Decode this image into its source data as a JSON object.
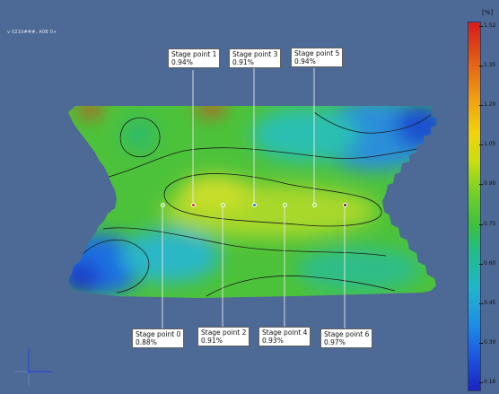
{
  "viewport": {
    "top_label": "v 0210###, A0B 0+",
    "background": "#4d6995"
  },
  "stage_points": [
    {
      "name": "Stage point 0",
      "value": "0.88%",
      "marker_color": "#8fd84a"
    },
    {
      "name": "Stage point 1",
      "value": "0.94%",
      "marker_color": "#c0392b"
    },
    {
      "name": "Stage point 2",
      "value": "0.91%",
      "marker_color": "#8fd84a"
    },
    {
      "name": "Stage point 3",
      "value": "0.91%",
      "marker_color": "#2b78c7"
    },
    {
      "name": "Stage point 4",
      "value": "0.93%",
      "marker_color": "#8fd84a"
    },
    {
      "name": "Stage point 5",
      "value": "0.94%",
      "marker_color": "#8fd84a"
    },
    {
      "name": "Stage point 6",
      "value": "0.97%",
      "marker_color": "#7a1a3a"
    }
  ],
  "colorbar": {
    "unit": "[%]",
    "ticks": [
      "1.52",
      "1.35",
      "1.20",
      "1.05",
      "0.90",
      "0.75",
      "0.60",
      "0.45",
      "0.30",
      "0.16"
    ]
  }
}
